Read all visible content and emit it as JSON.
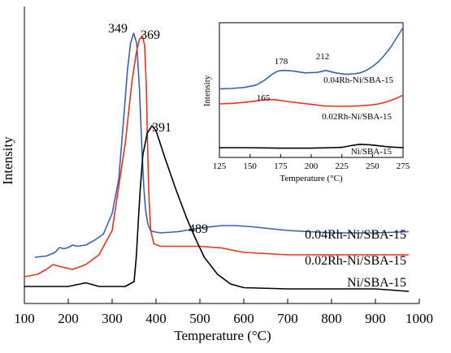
{
  "chart_data": [
    {
      "type": "line",
      "xlabel": "Temperature (°C)",
      "ylabel": "Intensity",
      "xlim": [
        100,
        1000
      ],
      "xticks": [
        "100",
        "200",
        "300",
        "400",
        "500",
        "600",
        "700",
        "800",
        "900",
        "1000"
      ],
      "grid": false,
      "colors": {
        "0.04Rh-Ni/SBA-15": "#3a5fb8",
        "0.02Rh-Ni/SBA-15": "#e8321e",
        "Ni/SBA-15": "#000000"
      },
      "series": [
        {
          "name": "0.04Rh-Ni/SBA-15",
          "x": [
            125,
            150,
            170,
            180,
            190,
            200,
            210,
            220,
            240,
            260,
            280,
            300,
            315,
            325,
            335,
            342,
            349,
            356,
            362,
            368,
            372,
            376,
            381,
            387,
            395,
            410,
            450,
            500,
            550,
            580,
            620,
            700,
            800,
            900,
            975
          ],
          "y": [
            0.08,
            0.085,
            0.1,
            0.12,
            0.115,
            0.12,
            0.13,
            0.125,
            0.13,
            0.15,
            0.175,
            0.26,
            0.4,
            0.62,
            0.85,
            0.96,
            1.0,
            0.96,
            0.78,
            0.52,
            0.37,
            0.28,
            0.22,
            0.19,
            0.185,
            0.18,
            0.185,
            0.2,
            0.21,
            0.21,
            0.205,
            0.19,
            0.18,
            0.18,
            0.185
          ]
        },
        {
          "name": "0.02Rh-Ni/SBA-15",
          "x": [
            100,
            130,
            150,
            165,
            185,
            210,
            240,
            270,
            300,
            330,
            345,
            355,
            362,
            369,
            374,
            378,
            381,
            384,
            388,
            395,
            410,
            450,
            500,
            550,
            600,
            700,
            800,
            900,
            975
          ],
          "y": [
            0.0,
            0.01,
            0.03,
            0.05,
            0.04,
            0.03,
            0.05,
            0.09,
            0.19,
            0.55,
            0.8,
            0.92,
            0.975,
            0.99,
            0.95,
            0.78,
            0.52,
            0.32,
            0.19,
            0.135,
            0.125,
            0.125,
            0.125,
            0.118,
            0.1,
            0.09,
            0.09,
            0.09,
            0.09
          ]
        },
        {
          "name": "Ni/SBA-15",
          "x": [
            100,
            150,
            200,
            240,
            270,
            300,
            330,
            350,
            355,
            360,
            364,
            370,
            380,
            391,
            400,
            420,
            445,
            470,
            489,
            510,
            540,
            570,
            600,
            700,
            800,
            900,
            975
          ],
          "y": [
            0.0,
            0.0,
            0.0,
            0.015,
            0.0,
            0.0,
            0.0,
            0.02,
            0.12,
            0.28,
            0.4,
            0.54,
            0.63,
            0.66,
            0.64,
            0.53,
            0.4,
            0.28,
            0.2,
            0.12,
            0.05,
            0.01,
            -0.005,
            -0.01,
            -0.01,
            -0.01,
            -0.02
          ]
        }
      ],
      "annotations": [
        "349",
        "369",
        "391",
        "489"
      ]
    },
    {
      "type": "line",
      "xlabel": "Temperature (°C)",
      "ylabel": "Intensity",
      "xlim": [
        125,
        275
      ],
      "xticks": [
        "125",
        "150",
        "175",
        "200",
        "225",
        "250",
        "275"
      ],
      "grid": false,
      "series": [
        {
          "name": "0.04Rh-Ni/SBA-15",
          "x": [
            125,
            135,
            145,
            155,
            162,
            168,
            173,
            178,
            185,
            195,
            205,
            212,
            220,
            228,
            235,
            240,
            245,
            250,
            255,
            260,
            265,
            270,
            275
          ],
          "y": [
            0.02,
            0.025,
            0.035,
            0.06,
            0.11,
            0.17,
            0.205,
            0.21,
            0.205,
            0.185,
            0.19,
            0.21,
            0.185,
            0.17,
            0.175,
            0.185,
            0.21,
            0.25,
            0.3,
            0.37,
            0.45,
            0.55,
            0.65
          ]
        },
        {
          "name": "0.02Rh-Ni/SBA-15",
          "x": [
            125,
            135,
            145,
            155,
            160,
            165,
            172,
            180,
            190,
            200,
            210,
            220,
            230,
            240,
            250,
            255,
            260,
            265,
            270,
            275
          ],
          "y": [
            0.0,
            0.005,
            0.015,
            0.03,
            0.04,
            0.045,
            0.04,
            0.025,
            0.01,
            -0.005,
            -0.02,
            -0.025,
            -0.025,
            -0.02,
            -0.01,
            0.0,
            0.015,
            0.035,
            0.06,
            0.09
          ]
        },
        {
          "name": "Ni/SBA-15",
          "x": [
            125,
            150,
            175,
            200,
            215,
            225,
            232,
            240,
            248,
            255,
            262,
            268,
            275
          ],
          "y": [
            0.0,
            0.0,
            -0.005,
            -0.005,
            0.0,
            0.003,
            0.02,
            0.035,
            0.03,
            0.02,
            0.01,
            0.005,
            0.0
          ]
        }
      ],
      "annotations": [
        "178",
        "212",
        "165"
      ]
    }
  ]
}
